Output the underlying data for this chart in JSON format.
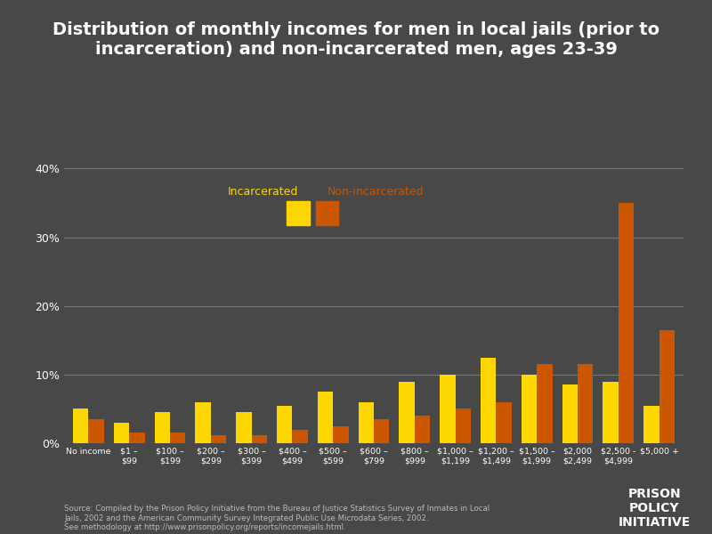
{
  "title": "Distribution of monthly incomes for men in local jails (prior to\nincarceration) and non-incarcerated men, ages 23-39",
  "categories": [
    "No income",
    "$1 –\n$99",
    "$100 –\n$199",
    "$200 –\n$299",
    "$300 –\n$399",
    "$400 –\n$499",
    "$500 –\n$599",
    "$600 –\n$799",
    "$800 –\n$999",
    "$1,000 –\n$1,199",
    "$1,200 –\n$1,499",
    "$1,500 –\n$1,999",
    "$2,000\n$2,499",
    "$2,500 -\n$4,999",
    "$5,000 +"
  ],
  "incarcerated": [
    5.0,
    3.0,
    4.5,
    6.0,
    4.5,
    5.5,
    7.5,
    6.0,
    9.0,
    10.0,
    12.5,
    10.0,
    8.5,
    9.0,
    5.5
  ],
  "non_incarcerated": [
    3.5,
    1.5,
    1.5,
    1.2,
    1.2,
    2.0,
    2.5,
    3.5,
    4.0,
    5.0,
    6.0,
    11.5,
    11.5,
    35.0,
    16.5
  ],
  "incarcerated_color": "#FFD700",
  "non_incarcerated_color": "#CC5500",
  "background_color": "#484848",
  "text_color": "#ffffff",
  "grid_color": "#777777",
  "ylim": [
    0,
    42
  ],
  "yticks": [
    0,
    10,
    20,
    30,
    40
  ],
  "ytick_labels": [
    "0%",
    "10%",
    "20%",
    "30%",
    "40%"
  ],
  "legend_incarcerated_label": "Incarcerated",
  "legend_non_incarcerated_label": "Non-incarcerated",
  "source_text": "Source: Compiled by the Prison Policy Initiative from the Bureau of Justice Statistics Survey of Inmates in Local\nJails, 2002 and the American Community Survey Integrated Public Use Microdata Series, 2002.\nSee methodology at http://www.prisonpolicy.org/reports/incomejails.html.",
  "logo_text": "PRISON\nPOLICY\nINITIATIVE",
  "title_fontsize": 14,
  "bar_width": 0.38,
  "figsize": [
    8.0,
    6.0
  ],
  "dpi": 100
}
